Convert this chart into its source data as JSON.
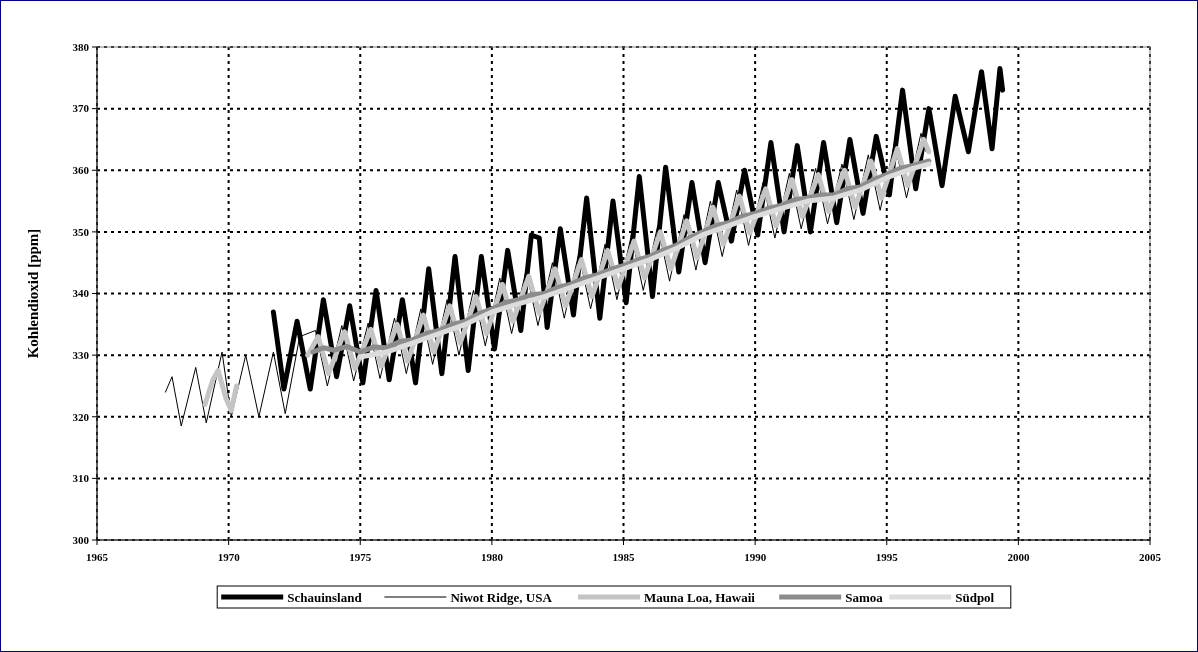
{
  "chart_data": {
    "type": "line",
    "ylabel": "Kohlendioxid [ppm]",
    "xlim": [
      1965,
      2005
    ],
    "xticks": [
      1965,
      1970,
      1975,
      1980,
      1985,
      1990,
      1995,
      2000,
      2005
    ],
    "ylim": [
      300,
      380
    ],
    "yticks": [
      300,
      310,
      320,
      330,
      340,
      350,
      360,
      370,
      380
    ],
    "grid": true,
    "legend": "bottom",
    "marker": "none",
    "line_style": "solid",
    "series": [
      {
        "name": "Schauinsland",
        "color": "#000000",
        "x": [
          1971.7,
          1972.1,
          1972.6,
          1973.1,
          1973.6,
          1974.1,
          1974.6,
          1975.1,
          1975.6,
          1976.1,
          1976.6,
          1977.1,
          1977.6,
          1978.1,
          1978.6,
          1979.1,
          1979.6,
          1980.1,
          1980.6,
          1981.1,
          1981.5,
          1981.8,
          1982.1,
          1982.6,
          1983.1,
          1983.6,
          1984.1,
          1984.6,
          1985.1,
          1985.6,
          1986.1,
          1986.6,
          1987.1,
          1987.6,
          1988.1,
          1988.6,
          1989.1,
          1989.6,
          1990.1,
          1990.6,
          1991.1,
          1991.6,
          1992.1,
          1992.6,
          1993.1,
          1993.6,
          1994.1,
          1994.6,
          1995.1,
          1995.6,
          1996.1,
          1996.6,
          1997.1,
          1997.6,
          1998.1,
          1998.6,
          1999.0,
          1999.3,
          1999.4
        ],
        "values": [
          337,
          324.5,
          335.5,
          324.5,
          339,
          326.5,
          338,
          325.5,
          340.5,
          326,
          339,
          325.5,
          344,
          327,
          346,
          327.5,
          346,
          331,
          347,
          334,
          349.5,
          349,
          334.5,
          350.5,
          336.5,
          355.5,
          336,
          355,
          338.5,
          359,
          339.5,
          360.5,
          343.5,
          358,
          345,
          358,
          348.5,
          360,
          349.5,
          364.5,
          350,
          364,
          350,
          364.5,
          351.5,
          365,
          353,
          365.5,
          356,
          373,
          357,
          370,
          357.5,
          372,
          363,
          376,
          363.5,
          376.5,
          373
        ]
      },
      {
        "name": "Niwot Ridge, USA",
        "color": "#000000",
        "x": [
          1967.6,
          1967.85,
          1968.2,
          1968.75,
          1969.15,
          1969.75,
          1970.1,
          1970.65,
          1971.15,
          1971.7,
          1972.15,
          1972.7,
          1973.3,
          1973.75,
          1974.3,
          1974.75,
          1975.3,
          1975.75,
          1976.3,
          1976.75,
          1977.3,
          1977.75,
          1978.3,
          1978.75,
          1979.3,
          1979.75,
          1980.3,
          1980.75,
          1981.3,
          1981.75,
          1982.3,
          1982.75,
          1983.3,
          1983.75,
          1984.3,
          1984.75,
          1985.3,
          1985.75,
          1986.3,
          1986.75,
          1987.3,
          1987.75,
          1988.3,
          1988.75,
          1989.3,
          1989.75,
          1990.3,
          1990.75,
          1991.3,
          1991.75,
          1992.3,
          1992.75,
          1993.3,
          1993.75,
          1994.3,
          1994.75,
          1995.3,
          1995.75,
          1996.3,
          1996.5
        ],
        "values": [
          324,
          326.5,
          318.5,
          328,
          319,
          330.5,
          320,
          330,
          320,
          330.5,
          320.5,
          333,
          334,
          325,
          334.8,
          325.8,
          335.2,
          326.2,
          336,
          327,
          337.5,
          328.5,
          339,
          330,
          340.5,
          331.5,
          342.5,
          333.5,
          343.8,
          334.8,
          345,
          336,
          346.5,
          337.5,
          348,
          339,
          349.5,
          340.5,
          351,
          342,
          352.8,
          343.8,
          355,
          346,
          356.8,
          347.8,
          358,
          349,
          359.5,
          350.5,
          360.3,
          351.3,
          361,
          352,
          362.5,
          353.5,
          364.5,
          355.5,
          366,
          363
        ]
      },
      {
        "name": "Mauna Loa, Hawaii",
        "color": "#c4c4c4",
        "x": [
          1969.1,
          1969.4,
          1969.6,
          1969.9,
          1970.1,
          1970.3,
          1971.5,
          1973.0,
          1973.4,
          1973.8,
          1974.4,
          1974.8,
          1975.4,
          1975.8,
          1976.4,
          1976.8,
          1977.4,
          1977.8,
          1978.4,
          1978.8,
          1979.4,
          1979.8,
          1980.4,
          1980.8,
          1981.4,
          1981.8,
          1982.4,
          1982.8,
          1983.4,
          1983.8,
          1984.4,
          1984.8,
          1985.4,
          1985.8,
          1986.4,
          1986.8,
          1987.4,
          1987.8,
          1988.4,
          1988.8,
          1989.4,
          1989.8,
          1990.4,
          1990.8,
          1991.4,
          1991.8,
          1992.4,
          1992.8,
          1993.4,
          1993.8,
          1994.4,
          1994.8,
          1995.4,
          1995.8,
          1996.4,
          1996.6
        ],
        "values": [
          322,
          326,
          327.5,
          323,
          321,
          325,
          null,
          330,
          333,
          327,
          333.8,
          327.8,
          334.2,
          328.2,
          335,
          329,
          336.5,
          330.5,
          338,
          332,
          339.5,
          333.5,
          341.5,
          335.5,
          342.8,
          336.8,
          344,
          338,
          345.5,
          339.5,
          347,
          341,
          348.5,
          342.5,
          350,
          344,
          351.8,
          345.8,
          354,
          348,
          355.8,
          349.8,
          357,
          351,
          358.5,
          352.5,
          359.3,
          353.3,
          360,
          354,
          361.5,
          355.5,
          363.5,
          357.5,
          365,
          363
        ]
      },
      {
        "name": "Samoa",
        "color": "#8c8c8c",
        "x": [
          1973.2,
          1973.6,
          1974.0,
          1974.5,
          1975.0,
          1975.5,
          1976.0,
          1976.5,
          1977.0,
          1977.5,
          1978.0,
          1978.5,
          1979.0,
          1979.5,
          1980.0,
          1980.5,
          1981.0,
          1981.5,
          1982.0,
          1982.5,
          1983.0,
          1983.5,
          1984.0,
          1984.5,
          1985.0,
          1985.5,
          1986.0,
          1986.5,
          1987.0,
          1987.5,
          1988.0,
          1988.5,
          1989.0,
          1989.5,
          1990.0,
          1990.5,
          1991.0,
          1991.5,
          1992.0,
          1992.5,
          1993.0,
          1993.5,
          1994.0,
          1994.5,
          1995.0,
          1995.5,
          1996.0,
          1996.6
        ],
        "values": [
          330.5,
          331.2,
          330.8,
          331.4,
          330.5,
          331.3,
          331.2,
          332.2,
          332.5,
          333.5,
          334,
          335,
          335.5,
          336.7,
          337.5,
          338.5,
          339,
          339.8,
          340,
          341,
          341.5,
          342.5,
          343,
          343.9,
          344.5,
          345.4,
          346,
          347,
          347.8,
          349,
          350,
          351,
          351.5,
          352.5,
          353,
          353.8,
          354.3,
          355.2,
          355.5,
          356,
          356,
          357,
          357.3,
          358.5,
          359.3,
          360.3,
          360.8,
          361.5
        ]
      },
      {
        "name": "Südpol",
        "color": "#dcdcdc",
        "x": [
          1975.0,
          1976.0,
          1977.0,
          1978.0,
          1979.0,
          1980.0,
          1981.0,
          1982.0,
          1983.0,
          1984.0,
          1985.0,
          1986.0,
          1987.0,
          1988.0,
          1989.0,
          1990.0,
          1991.0,
          1992.0,
          1993.0,
          1994.0,
          1995.0,
          1996.0,
          1996.6
        ],
        "values": [
          329.7,
          330.5,
          332,
          333.5,
          335,
          337,
          338.3,
          339.5,
          341,
          342.5,
          344,
          345.5,
          347.3,
          349.5,
          351,
          352.5,
          353.8,
          355,
          355.5,
          356.8,
          358.8,
          360.3,
          361
        ]
      }
    ]
  }
}
